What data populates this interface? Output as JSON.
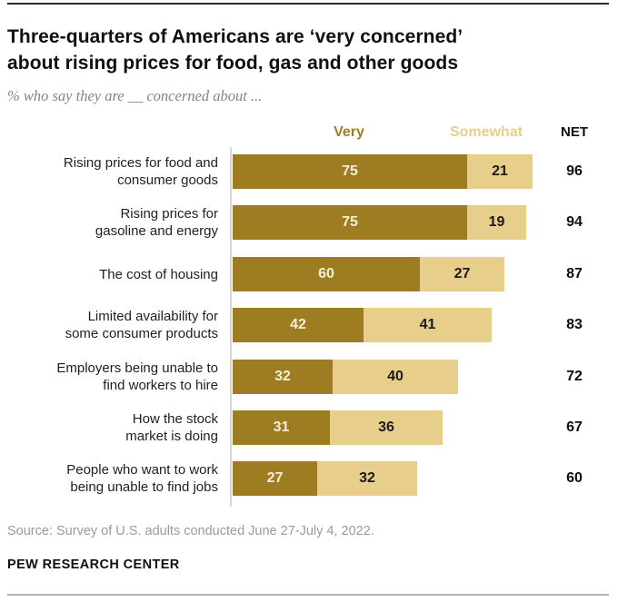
{
  "header": {
    "title_line1": "Three-quarters of Americans are ‘very concerned’",
    "title_line2": "about rising prices for food, gas and other goods",
    "subtitle": "% who say they are __ concerned about ..."
  },
  "chart_data": {
    "type": "bar",
    "orientation": "horizontal",
    "stacked": true,
    "xlim": [
      0,
      100
    ],
    "legend_position": "top",
    "grid": false,
    "net_label": "NET",
    "categories": [
      [
        "Rising prices for food and",
        "consumer goods"
      ],
      [
        "Rising prices for",
        "gasoline and energy"
      ],
      [
        "The cost of housing"
      ],
      [
        "Limited availability for",
        "some consumer products"
      ],
      [
        "Employers being unable to",
        "find workers to hire"
      ],
      [
        "How the stock",
        "market is doing"
      ],
      [
        "People who want to work",
        "being unable to find jobs"
      ]
    ],
    "series": [
      {
        "name": "Very",
        "color": "#9E7D22",
        "label_color": "#F6EFD5",
        "values": [
          75,
          75,
          60,
          42,
          32,
          31,
          27
        ]
      },
      {
        "name": "Somewhat",
        "color": "#E7CF8B",
        "label_color": "#1a1a1a",
        "values": [
          21,
          19,
          27,
          41,
          40,
          36,
          32
        ]
      }
    ],
    "net_values": [
      96,
      94,
      87,
      83,
      72,
      67,
      60
    ]
  },
  "footer": {
    "source": "Source: Survey of U.S. adults conducted June 27-July 4, 2022.",
    "brand": "PEW RESEARCH CENTER"
  },
  "colors": {
    "very": "#9E7D22",
    "somewhat": "#E7CF8B",
    "axis_line": "#d8d8d8",
    "top_rule": "#2b2b2b",
    "bottom_rule": "#b3b3b3"
  }
}
